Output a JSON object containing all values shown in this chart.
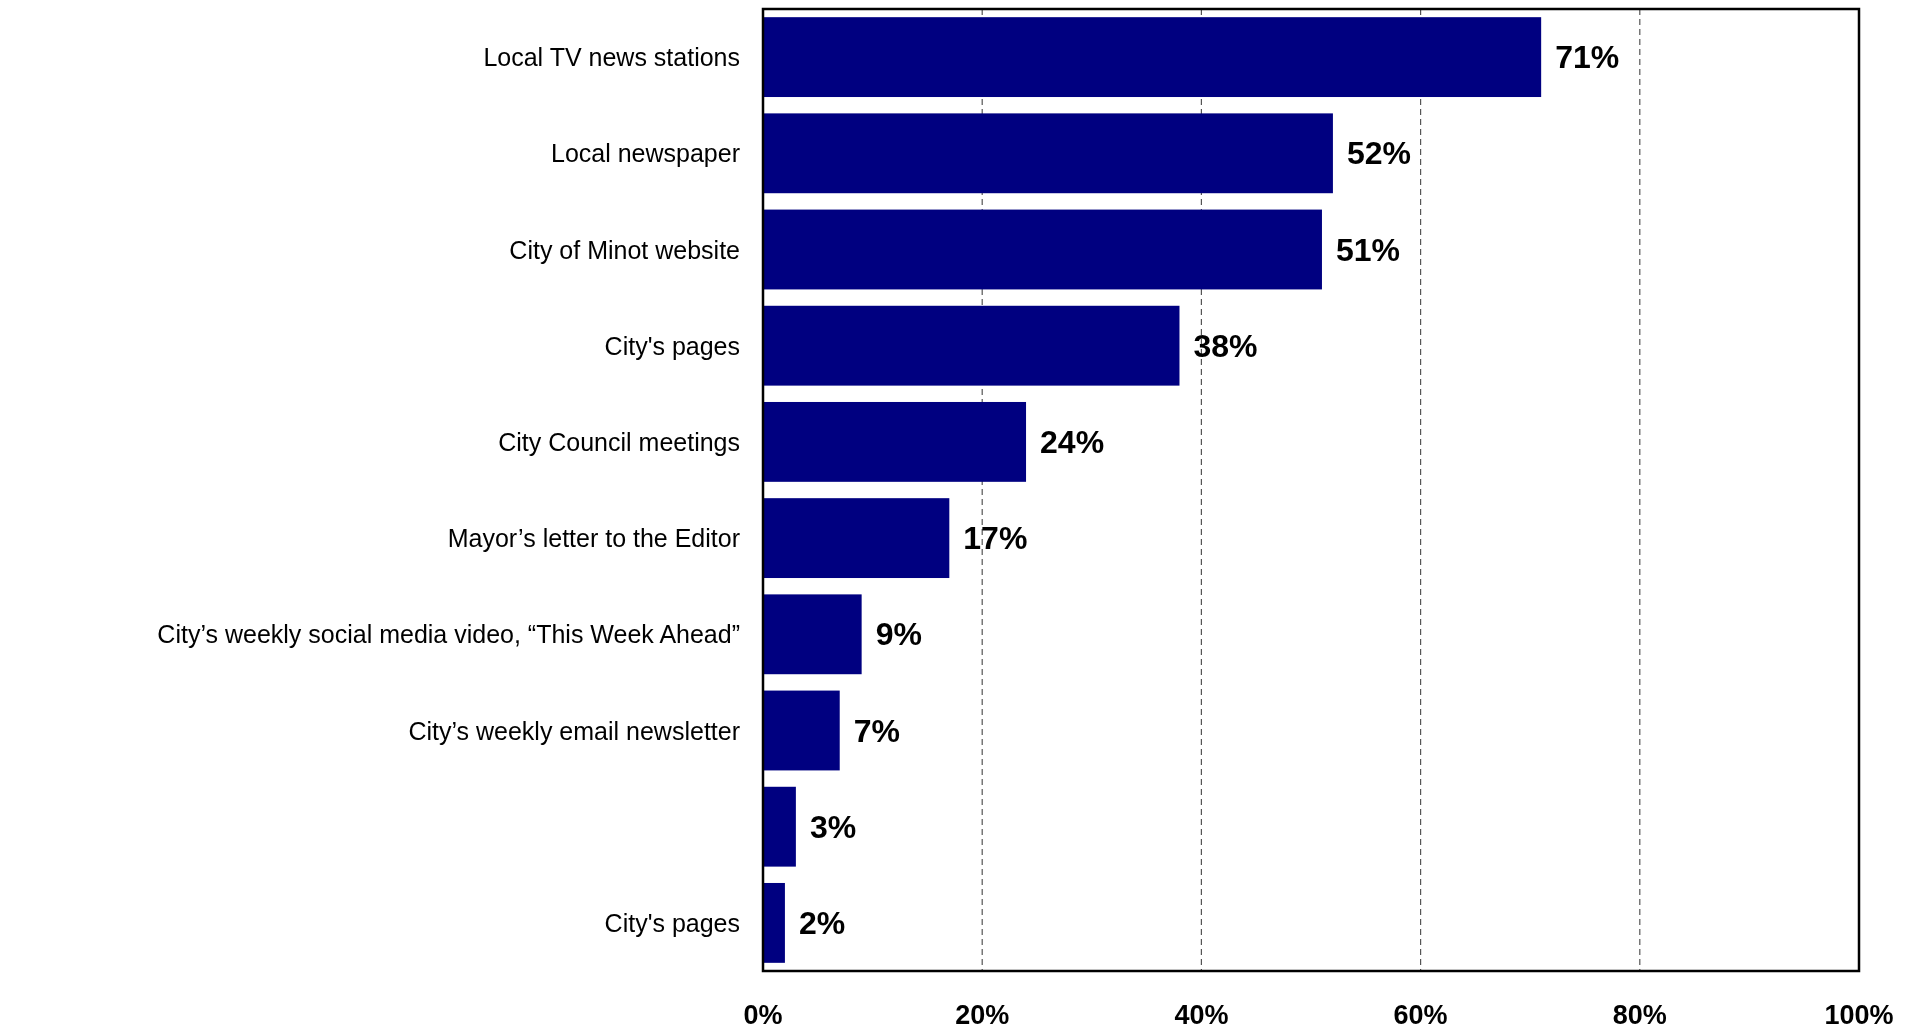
{
  "chart_data": {
    "type": "bar",
    "orientation": "horizontal",
    "categories": [
      "Local TV news stations",
      "Local newspaper",
      "City of Minot website",
      "City's pages",
      "City Council meetings",
      "Mayor’s letter to the Editor",
      "City’s weekly social media video, “This Week Ahead”",
      "City’s weekly email newsletter",
      null,
      "City's pages"
    ],
    "values": [
      71,
      52,
      51,
      38,
      24,
      17,
      9,
      7,
      3,
      2
    ],
    "value_labels": [
      "71%",
      "52%",
      "51%",
      "38%",
      "24%",
      "17%",
      "9%",
      "7%",
      "3%",
      "2%"
    ],
    "color": "#000080",
    "xlim": [
      0,
      100
    ],
    "xticks": [
      {
        "value": 0,
        "label": "0%"
      },
      {
        "value": 20,
        "label": "20%"
      },
      {
        "value": 40,
        "label": "40%"
      },
      {
        "value": 60,
        "label": "60%"
      },
      {
        "value": 80,
        "label": "80%"
      },
      {
        "value": 100,
        "label": "100%"
      }
    ],
    "grid": "x"
  }
}
